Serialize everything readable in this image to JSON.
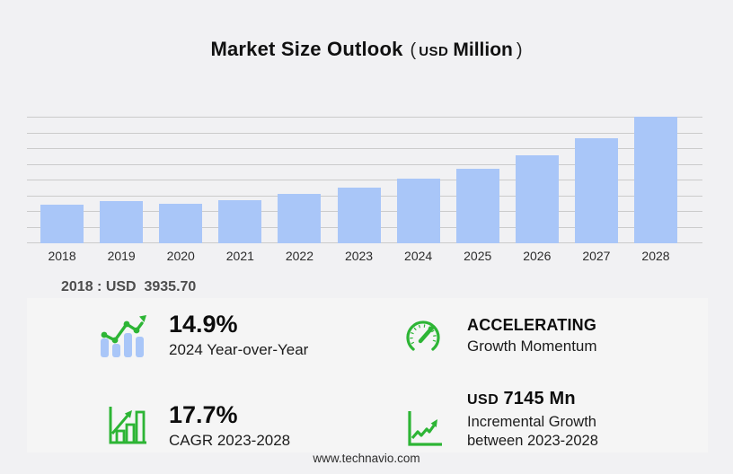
{
  "title": {
    "main": "Market Size Outlook",
    "paren_open": "(",
    "currency": "USD",
    "unit": "Million",
    "paren_close": ")"
  },
  "baseline_note": "2018 : USD  3935.70",
  "chart_data": {
    "type": "bar",
    "title": "Market Size Outlook (USD Million)",
    "unit": "USD Million",
    "categories": [
      "2018",
      "2019",
      "2020",
      "2021",
      "2022",
      "2023",
      "2024",
      "2025",
      "2026",
      "2027",
      "2028"
    ],
    "values": [
      3935.7,
      4300,
      3965,
      4390,
      4965,
      5680,
      6525,
      7590,
      8940,
      10640,
      12825
    ],
    "ymax": 12825,
    "ylabel": "",
    "xlabel": "",
    "y_axis_tick_labels_visible": false,
    "grid": true,
    "gridline_count": 9,
    "bar_color": "#a9c6f8",
    "annotations": [
      "2018 : USD 3935.70"
    ]
  },
  "stats": [
    {
      "icon": "yoy-growth-chart-icon",
      "value": "14.9%",
      "label": "2024 Year-over-Year"
    },
    {
      "icon": "speedometer-icon",
      "value": "ACCELERATING",
      "label": "Growth Momentum"
    },
    {
      "icon": "cagr-bar-chart-icon",
      "value": "17.7%",
      "label": "CAGR 2023-2028"
    },
    {
      "icon": "incremental-growth-icon",
      "prefix": "USD",
      "value": "7145 Mn",
      "label": "Incremental Growth",
      "label2": "between 2023-2028"
    }
  ],
  "footer": {
    "website": "www.technavio.com"
  },
  "colors": {
    "background": "#f1f1f3",
    "panel": "#f5f5f5",
    "bar": "#a9c6f8",
    "gridline": "#cbcbcb",
    "accent_green": "#2db535",
    "title_text": "#111111",
    "note_text": "#4d4d4d"
  }
}
